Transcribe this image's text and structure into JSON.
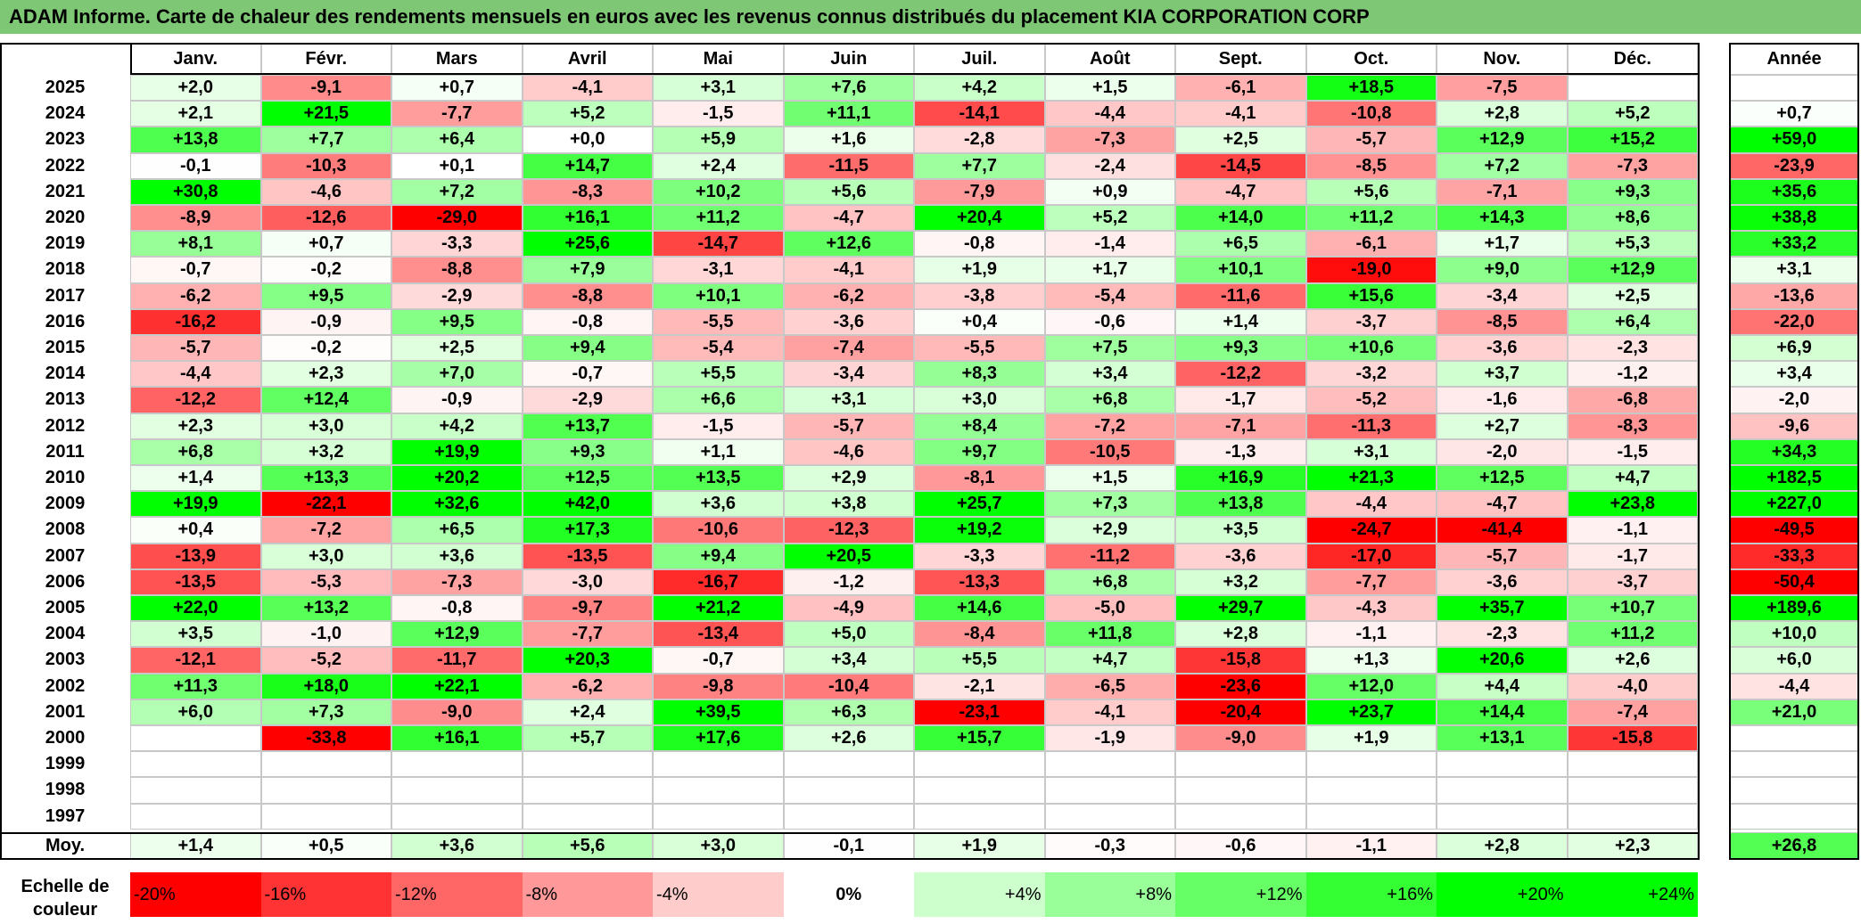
{
  "title": "ADAM Informe. Carte de chaleur des rendements mensuels en euros avec les revenus connus distribués du placement KIA CORPORATION CORP",
  "colors": {
    "title_bg": "#7dc775",
    "neg_max": "#ff0000",
    "pos_max": "#00ff00",
    "zero": "#ffffff"
  },
  "chart_data": {
    "type": "heatmap",
    "title": "ADAM Informe. Carte de chaleur des rendements mensuels en euros avec les revenus connus distribués du placement KIA CORPORATION CORP",
    "months": [
      "Janv.",
      "Févr.",
      "Mars",
      "Avril",
      "Mai",
      "Juin",
      "Juil.",
      "Août",
      "Sept.",
      "Oct.",
      "Nov.",
      "Déc."
    ],
    "year_header": "Année",
    "rows": [
      {
        "year": "2025",
        "values": [
          "+2,0",
          "-9,1",
          "+0,7",
          "-4,1",
          "+3,1",
          "+7,6",
          "+4,2",
          "+1,5",
          "-6,1",
          "+18,5",
          "-7,5",
          ""
        ],
        "annual": ""
      },
      {
        "year": "2024",
        "values": [
          "+2,1",
          "+21,5",
          "-7,7",
          "+5,2",
          "-1,5",
          "+11,1",
          "-14,1",
          "-4,4",
          "-4,1",
          "-10,8",
          "+2,8",
          "+5,2"
        ],
        "annual": "+0,7"
      },
      {
        "year": "2023",
        "values": [
          "+13,8",
          "+7,7",
          "+6,4",
          "+0,0",
          "+5,9",
          "+1,6",
          "-2,8",
          "-7,3",
          "+2,5",
          "-5,7",
          "+12,9",
          "+15,2"
        ],
        "annual": "+59,0"
      },
      {
        "year": "2022",
        "values": [
          "-0,1",
          "-10,3",
          "+0,1",
          "+14,7",
          "+2,4",
          "-11,5",
          "+7,7",
          "-2,4",
          "-14,5",
          "-8,5",
          "+7,2",
          "-7,3"
        ],
        "annual": "-23,9"
      },
      {
        "year": "2021",
        "values": [
          "+30,8",
          "-4,6",
          "+7,2",
          "-8,3",
          "+10,2",
          "+5,6",
          "-7,9",
          "+0,9",
          "-4,7",
          "+5,6",
          "-7,1",
          "+9,3"
        ],
        "annual": "+35,6"
      },
      {
        "year": "2020",
        "values": [
          "-8,9",
          "-12,6",
          "-29,0",
          "+16,1",
          "+11,2",
          "-4,7",
          "+20,4",
          "+5,2",
          "+14,0",
          "+11,2",
          "+14,3",
          "+8,6"
        ],
        "annual": "+38,8"
      },
      {
        "year": "2019",
        "values": [
          "+8,1",
          "+0,7",
          "-3,3",
          "+25,6",
          "-14,7",
          "+12,6",
          "-0,8",
          "-1,4",
          "+6,5",
          "-6,1",
          "+1,7",
          "+5,3"
        ],
        "annual": "+33,2"
      },
      {
        "year": "2018",
        "values": [
          "-0,7",
          "-0,2",
          "-8,8",
          "+7,9",
          "-3,1",
          "-4,1",
          "+1,9",
          "+1,7",
          "+10,1",
          "-19,0",
          "+9,0",
          "+12,9"
        ],
        "annual": "+3,1"
      },
      {
        "year": "2017",
        "values": [
          "-6,2",
          "+9,5",
          "-2,9",
          "-8,8",
          "+10,1",
          "-6,2",
          "-3,8",
          "-5,4",
          "-11,6",
          "+15,6",
          "-3,4",
          "+2,5"
        ],
        "annual": "-13,6"
      },
      {
        "year": "2016",
        "values": [
          "-16,2",
          "-0,9",
          "+9,5",
          "-0,8",
          "-5,5",
          "-3,6",
          "+0,4",
          "-0,6",
          "+1,4",
          "-3,7",
          "-8,5",
          "+6,4"
        ],
        "annual": "-22,0"
      },
      {
        "year": "2015",
        "values": [
          "-5,7",
          "-0,2",
          "+2,5",
          "+9,4",
          "-5,4",
          "-7,4",
          "-5,5",
          "+7,5",
          "+9,3",
          "+10,6",
          "-3,6",
          "-2,3"
        ],
        "annual": "+6,9"
      },
      {
        "year": "2014",
        "values": [
          "-4,4",
          "+2,3",
          "+7,0",
          "-0,7",
          "+5,5",
          "-3,4",
          "+8,3",
          "+3,4",
          "-12,2",
          "-3,2",
          "+3,7",
          "-1,2"
        ],
        "annual": "+3,4"
      },
      {
        "year": "2013",
        "values": [
          "-12,2",
          "+12,4",
          "-0,9",
          "-2,9",
          "+6,6",
          "+3,1",
          "+3,0",
          "+6,8",
          "-1,7",
          "-5,2",
          "-1,6",
          "-6,8"
        ],
        "annual": "-2,0"
      },
      {
        "year": "2012",
        "values": [
          "+2,3",
          "+3,0",
          "+4,2",
          "+13,7",
          "-1,5",
          "-5,7",
          "+8,4",
          "-7,2",
          "-7,1",
          "-11,3",
          "+2,7",
          "-8,3"
        ],
        "annual": "-9,6"
      },
      {
        "year": "2011",
        "values": [
          "+6,8",
          "+3,2",
          "+19,9",
          "+9,3",
          "+1,1",
          "-4,6",
          "+9,7",
          "-10,5",
          "-1,3",
          "+3,1",
          "-2,0",
          "-1,5"
        ],
        "annual": "+34,3"
      },
      {
        "year": "2010",
        "values": [
          "+1,4",
          "+13,3",
          "+20,2",
          "+12,5",
          "+13,5",
          "+2,9",
          "-8,1",
          "+1,5",
          "+16,9",
          "+21,3",
          "+12,5",
          "+4,7"
        ],
        "annual": "+182,5"
      },
      {
        "year": "2009",
        "values": [
          "+19,9",
          "-22,1",
          "+32,6",
          "+42,0",
          "+3,6",
          "+3,8",
          "+25,7",
          "+7,3",
          "+13,8",
          "-4,4",
          "-4,7",
          "+23,8"
        ],
        "annual": "+227,0"
      },
      {
        "year": "2008",
        "values": [
          "+0,4",
          "-7,2",
          "+6,5",
          "+17,3",
          "-10,6",
          "-12,3",
          "+19,2",
          "+2,9",
          "+3,5",
          "-24,7",
          "-41,4",
          "-1,1"
        ],
        "annual": "-49,5"
      },
      {
        "year": "2007",
        "values": [
          "-13,9",
          "+3,0",
          "+3,6",
          "-13,5",
          "+9,4",
          "+20,5",
          "-3,3",
          "-11,2",
          "-3,6",
          "-17,0",
          "-5,7",
          "-1,7"
        ],
        "annual": "-33,3"
      },
      {
        "year": "2006",
        "values": [
          "-13,5",
          "-5,3",
          "-7,3",
          "-3,0",
          "-16,7",
          "-1,2",
          "-13,3",
          "+6,8",
          "+3,2",
          "-7,7",
          "-3,6",
          "-3,7"
        ],
        "annual": "-50,4"
      },
      {
        "year": "2005",
        "values": [
          "+22,0",
          "+13,2",
          "-0,8",
          "-9,7",
          "+21,2",
          "-4,9",
          "+14,6",
          "-5,0",
          "+29,7",
          "-4,3",
          "+35,7",
          "+10,7"
        ],
        "annual": "+189,6"
      },
      {
        "year": "2004",
        "values": [
          "+3,5",
          "-1,0",
          "+12,9",
          "-7,7",
          "-13,4",
          "+5,0",
          "-8,4",
          "+11,8",
          "+2,8",
          "-1,1",
          "-2,3",
          "+11,2"
        ],
        "annual": "+10,0"
      },
      {
        "year": "2003",
        "values": [
          "-12,1",
          "-5,2",
          "-11,7",
          "+20,3",
          "-0,7",
          "+3,4",
          "+5,5",
          "+4,7",
          "-15,8",
          "+1,3",
          "+20,6",
          "+2,6"
        ],
        "annual": "+6,0"
      },
      {
        "year": "2002",
        "values": [
          "+11,3",
          "+18,0",
          "+22,1",
          "-6,2",
          "-9,8",
          "-10,4",
          "-2,1",
          "-6,5",
          "-23,6",
          "+12,0",
          "+4,4",
          "-4,0"
        ],
        "annual": "-4,4"
      },
      {
        "year": "2001",
        "values": [
          "+6,0",
          "+7,3",
          "-9,0",
          "+2,4",
          "+39,5",
          "+6,3",
          "-23,1",
          "-4,1",
          "-20,4",
          "+23,7",
          "+14,4",
          "-7,4"
        ],
        "annual": "+21,0"
      },
      {
        "year": "2000",
        "values": [
          "",
          "-33,8",
          "+16,1",
          "+5,7",
          "+17,6",
          "+2,6",
          "+15,7",
          "-1,9",
          "-9,0",
          "+1,9",
          "+13,1",
          "-15,8"
        ],
        "annual": ""
      },
      {
        "year": "1999",
        "values": [
          "",
          "",
          "",
          "",
          "",
          "",
          "",
          "",
          "",
          "",
          "",
          ""
        ],
        "annual": ""
      },
      {
        "year": "1998",
        "values": [
          "",
          "",
          "",
          "",
          "",
          "",
          "",
          "",
          "",
          "",
          "",
          ""
        ],
        "annual": ""
      },
      {
        "year": "1997",
        "values": [
          "",
          "",
          "",
          "",
          "",
          "",
          "",
          "",
          "",
          "",
          "",
          ""
        ],
        "annual": ""
      }
    ],
    "average": {
      "label": "Moy.",
      "values": [
        "+1,4",
        "+0,5",
        "+3,6",
        "+5,6",
        "+3,0",
        "-0,1",
        "+1,9",
        "-0,3",
        "-0,6",
        "-1,1",
        "+2,8",
        "+2,3"
      ],
      "annual": "+26,8"
    },
    "scale": {
      "label_line1": "Echelle de",
      "label_line2": "couleur",
      "steps": [
        {
          "label": "-20%",
          "value": -20
        },
        {
          "label": "-16%",
          "value": -16
        },
        {
          "label": "-12%",
          "value": -12
        },
        {
          "label": "-8%",
          "value": -8
        },
        {
          "label": "-4%",
          "value": -4
        },
        {
          "label": "0%",
          "value": 0
        },
        {
          "label": "+4%",
          "value": 4
        },
        {
          "label": "+8%",
          "value": 8
        },
        {
          "label": "+12%",
          "value": 12
        },
        {
          "label": "+16%",
          "value": 16
        },
        {
          "label": "+20%",
          "value": 20
        },
        {
          "label": "+24%",
          "value": 24
        }
      ]
    }
  }
}
